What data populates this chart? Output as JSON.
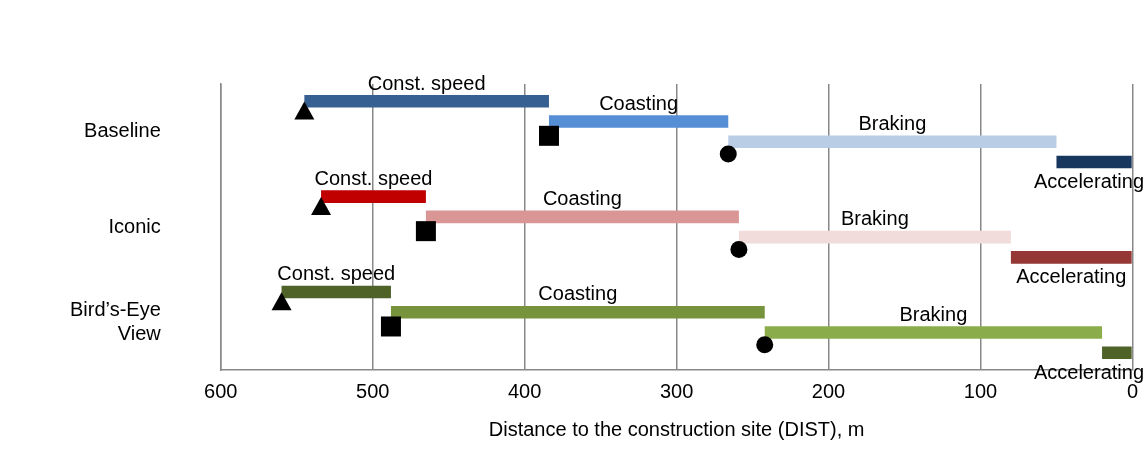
{
  "chart_data": {
    "type": "bar",
    "orientation": "horizontal",
    "xlabel": "Distance to the construction site (DIST), m",
    "categories": [
      "Baseline",
      "Iconic",
      "Bird’s-Eye View"
    ],
    "xlim": [
      600,
      0
    ],
    "xticks": [
      600,
      500,
      400,
      300,
      200,
      100,
      0
    ],
    "grid": "x",
    "legend": false,
    "series": [
      {
        "name": "Const. speed",
        "base": [
          384,
          465,
          488
        ],
        "values": [
          161,
          69,
          72
        ],
        "colors": [
          "#376092",
          "#c00000",
          "#4f6228"
        ]
      },
      {
        "name": "Coasting",
        "base": [
          266,
          259,
          242
        ],
        "values": [
          118,
          206,
          246
        ],
        "colors": [
          "#558ed5",
          "#d99694",
          "#77933c"
        ]
      },
      {
        "name": "Braking",
        "base": [
          50,
          80,
          20
        ],
        "values": [
          216,
          179,
          222
        ],
        "colors": [
          "#b9cde5",
          "#f2dcdb",
          "#8aac4a"
        ]
      },
      {
        "name": "Accelerating",
        "base": [
          0,
          0,
          0
        ],
        "values": [
          50,
          80,
          20
        ],
        "colors": [
          "#17375e",
          "#953735",
          "#4f6228"
        ]
      },
      {
        "type": "scatter",
        "marker": "triangle",
        "color": "#000000",
        "values": [
          545,
          534,
          560
        ]
      },
      {
        "type": "scatter",
        "marker": "square",
        "color": "#000000",
        "values": [
          384,
          465,
          488
        ]
      },
      {
        "type": "scatter",
        "marker": "circle",
        "color": "#000000",
        "values": [
          266,
          259,
          242
        ]
      }
    ]
  }
}
